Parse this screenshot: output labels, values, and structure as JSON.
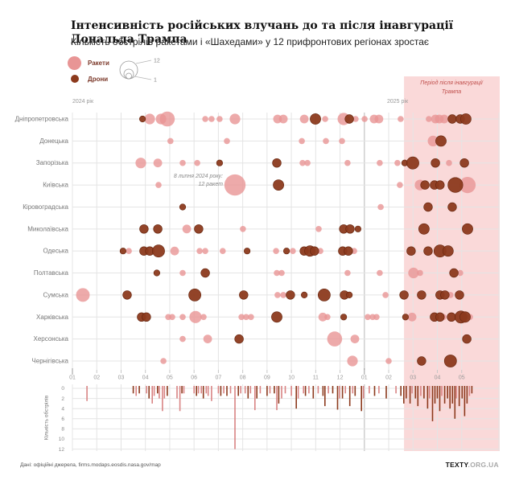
{
  "header": {
    "title": "Інтенсивність російських влучань до та після інавгурації Дональда Трампа",
    "subtitle": "Кількість обстрілів ракетами і «Шахедами» у 12 прифронтових регіонах зростає"
  },
  "legend": {
    "rockets": "Ракети",
    "drones": "Дрони",
    "size_max": "12",
    "size_min": "1"
  },
  "shade_label": {
    "line1": "Період після інавгурації",
    "line2": "Трампа"
  },
  "annotation": {
    "line1": "8 липня 2024 року:",
    "line2": "12 ракет"
  },
  "axis": {
    "year_left": "2024 рік",
    "year_right": "2025 рік",
    "bottom_label": "Кількість обстрілів"
  },
  "footer": {
    "source": "Дані: офіційні джерела, firms.modaps.eosdis.nasa.gov/map",
    "brand_bold": "TEXTY",
    "brand_rest": ".ORG.UA"
  },
  "colors": {
    "rocket": "#e89595",
    "drone": "#8c3a1d",
    "drone_stroke": "#66250e",
    "shade": "#fad9d9",
    "grid": "#e4e4e4",
    "year_line": "#c4c4c4",
    "axis_text": "#999999",
    "region_text": "#777777",
    "bar_rocket": "#d98484",
    "bar_drone": "#8c3a1d"
  },
  "chart_data": {
    "type": [
      "bubble-timeline",
      "bar"
    ],
    "title": "Інтенсивність російських влучань до та після інавгурації Дональда Трампа",
    "x_axis": "months from 2024-01 (t units, 0 = Jan 2024, 12 = Jan 2025)",
    "months": [
      "01",
      "02",
      "03",
      "04",
      "05",
      "06",
      "07",
      "08",
      "09",
      "10",
      "11",
      "12",
      "01",
      "02",
      "03",
      "04",
      "05"
    ],
    "x_domain": [
      0,
      17.53
    ],
    "shade_start_t": 13.63,
    "regions": [
      "Дніпропетровська",
      "Донецька",
      "Запорізька",
      "Київська",
      "Кіровоградська",
      "Миколаївська",
      "Одеська",
      "Полтавська",
      "Сумська",
      "Харківська",
      "Херсонська",
      "Чернігівська"
    ],
    "bubble_size_rule": "radius_px = 3.8 * sqrt(count); legend: count 1 (small) to 12 (large)",
    "annotation_target": {
      "region": "Київська",
      "t": 6.68,
      "count": 12
    },
    "bubbles": [
      [
        0,
        "d",
        2.88,
        1
      ],
      [
        0,
        "r",
        3.18,
        3
      ],
      [
        0,
        "r",
        3.64,
        3
      ],
      [
        0,
        "r",
        3.9,
        6
      ],
      [
        0,
        "r",
        5.46,
        1
      ],
      [
        0,
        "r",
        5.72,
        1
      ],
      [
        0,
        "r",
        6.05,
        1
      ],
      [
        0,
        "r",
        6.68,
        3
      ],
      [
        0,
        "r",
        8.43,
        2
      ],
      [
        0,
        "r",
        8.67,
        2
      ],
      [
        0,
        "r",
        9.53,
        2
      ],
      [
        0,
        "d",
        9.99,
        3
      ],
      [
        0,
        "r",
        10.39,
        1
      ],
      [
        0,
        "r",
        11.15,
        4
      ],
      [
        0,
        "d",
        11.38,
        2
      ],
      [
        0,
        "r",
        11.64,
        1
      ],
      [
        0,
        "r",
        12.01,
        1
      ],
      [
        0,
        "r",
        12.4,
        2
      ],
      [
        0,
        "r",
        12.6,
        2
      ],
      [
        0,
        "r",
        13.49,
        1
      ],
      [
        0,
        "r",
        14.65,
        1
      ],
      [
        0,
        "r",
        14.92,
        2
      ],
      [
        0,
        "r",
        15.08,
        2
      ],
      [
        0,
        "r",
        15.28,
        2
      ],
      [
        0,
        "d",
        15.61,
        2
      ],
      [
        0,
        "d",
        15.94,
        2
      ],
      [
        0,
        "d",
        16.17,
        3
      ],
      [
        1,
        "r",
        4.03,
        1
      ],
      [
        1,
        "r",
        6.35,
        1
      ],
      [
        1,
        "r",
        9.43,
        1
      ],
      [
        1,
        "r",
        10.42,
        1
      ],
      [
        1,
        "r",
        11.08,
        1
      ],
      [
        1,
        "r",
        14.82,
        3
      ],
      [
        1,
        "d",
        15.15,
        3
      ],
      [
        2,
        "r",
        2.81,
        3
      ],
      [
        2,
        "r",
        3.51,
        2
      ],
      [
        2,
        "r",
        4.53,
        1
      ],
      [
        2,
        "r",
        5.13,
        1
      ],
      [
        2,
        "d",
        6.05,
        1
      ],
      [
        2,
        "d",
        8.4,
        2
      ],
      [
        2,
        "r",
        9.46,
        1
      ],
      [
        2,
        "r",
        9.66,
        1
      ],
      [
        2,
        "r",
        11.31,
        1
      ],
      [
        2,
        "r",
        12.63,
        1
      ],
      [
        2,
        "r",
        13.36,
        1
      ],
      [
        2,
        "d",
        13.66,
        1
      ],
      [
        2,
        "d",
        13.99,
        4
      ],
      [
        2,
        "d",
        14.92,
        2
      ],
      [
        2,
        "r",
        15.48,
        1
      ],
      [
        2,
        "d",
        16.11,
        2
      ],
      [
        3,
        "r",
        3.54,
        1
      ],
      [
        3,
        "r",
        6.68,
        12
      ],
      [
        3,
        "d",
        8.47,
        3
      ],
      [
        3,
        "r",
        13.46,
        1
      ],
      [
        3,
        "r",
        14.29,
        3
      ],
      [
        3,
        "d",
        14.49,
        2
      ],
      [
        3,
        "d",
        14.88,
        2
      ],
      [
        3,
        "d",
        15.11,
        2
      ],
      [
        3,
        "d",
        15.74,
        6
      ],
      [
        3,
        "r",
        16.24,
        7
      ],
      [
        4,
        "d",
        4.53,
        1
      ],
      [
        4,
        "r",
        12.67,
        1
      ],
      [
        4,
        "d",
        14.62,
        2
      ],
      [
        4,
        "d",
        15.61,
        2
      ],
      [
        5,
        "d",
        2.94,
        2
      ],
      [
        5,
        "d",
        3.51,
        2
      ],
      [
        5,
        "r",
        4.7,
        2
      ],
      [
        5,
        "d",
        5.19,
        2
      ],
      [
        5,
        "r",
        7.01,
        1
      ],
      [
        5,
        "r",
        10.12,
        1
      ],
      [
        5,
        "d",
        11.15,
        2
      ],
      [
        5,
        "d",
        11.41,
        2
      ],
      [
        5,
        "d",
        11.74,
        1
      ],
      [
        5,
        "d",
        14.45,
        3
      ],
      [
        5,
        "d",
        16.24,
        3
      ],
      [
        6,
        "d",
        2.08,
        1
      ],
      [
        6,
        "r",
        2.32,
        1
      ],
      [
        6,
        "d",
        2.94,
        2
      ],
      [
        6,
        "d",
        3.18,
        2
      ],
      [
        6,
        "d",
        3.54,
        4
      ],
      [
        6,
        "r",
        4.2,
        2
      ],
      [
        6,
        "r",
        5.23,
        1
      ],
      [
        6,
        "r",
        5.46,
        1
      ],
      [
        6,
        "r",
        6.18,
        1
      ],
      [
        6,
        "d",
        7.18,
        1
      ],
      [
        6,
        "r",
        8.37,
        1
      ],
      [
        6,
        "d",
        8.8,
        1
      ],
      [
        6,
        "r",
        9.06,
        1
      ],
      [
        6,
        "d",
        9.53,
        2
      ],
      [
        6,
        "d",
        9.76,
        3
      ],
      [
        6,
        "d",
        9.95,
        2
      ],
      [
        6,
        "r",
        10.19,
        1
      ],
      [
        6,
        "d",
        11.11,
        2
      ],
      [
        6,
        "d",
        11.34,
        2
      ],
      [
        6,
        "r",
        11.58,
        1
      ],
      [
        6,
        "d",
        13.92,
        2
      ],
      [
        6,
        "d",
        14.62,
        2
      ],
      [
        6,
        "d",
        15.11,
        4
      ],
      [
        6,
        "d",
        15.44,
        3
      ],
      [
        7,
        "d",
        3.47,
        1
      ],
      [
        7,
        "r",
        4.53,
        1
      ],
      [
        7,
        "d",
        5.46,
        2
      ],
      [
        7,
        "r",
        8.4,
        1
      ],
      [
        7,
        "r",
        8.6,
        1
      ],
      [
        7,
        "r",
        11.31,
        1
      ],
      [
        7,
        "r",
        12.63,
        1
      ],
      [
        7,
        "r",
        14.02,
        3
      ],
      [
        7,
        "r",
        14.29,
        1
      ],
      [
        7,
        "d",
        15.68,
        2
      ],
      [
        7,
        "r",
        15.94,
        1
      ],
      [
        8,
        "r",
        0.43,
        5
      ],
      [
        8,
        "d",
        2.25,
        2
      ],
      [
        8,
        "d",
        5.03,
        4
      ],
      [
        8,
        "d",
        7.04,
        2
      ],
      [
        8,
        "r",
        8.43,
        1
      ],
      [
        8,
        "r",
        8.67,
        1
      ],
      [
        8,
        "d",
        8.96,
        2
      ],
      [
        8,
        "d",
        9.53,
        1
      ],
      [
        8,
        "d",
        10.35,
        4
      ],
      [
        8,
        "d",
        11.18,
        2
      ],
      [
        8,
        "d",
        11.38,
        1
      ],
      [
        8,
        "r",
        12.87,
        1
      ],
      [
        8,
        "d",
        13.63,
        2
      ],
      [
        8,
        "d",
        14.35,
        2
      ],
      [
        8,
        "d",
        15.11,
        2
      ],
      [
        8,
        "d",
        15.31,
        2
      ],
      [
        8,
        "r",
        15.54,
        1
      ],
      [
        8,
        "d",
        15.91,
        2
      ],
      [
        9,
        "d",
        2.84,
        2
      ],
      [
        9,
        "d",
        3.04,
        2
      ],
      [
        9,
        "r",
        3.94,
        1
      ],
      [
        9,
        "r",
        4.1,
        1
      ],
      [
        9,
        "r",
        4.53,
        1
      ],
      [
        9,
        "r",
        5.06,
        4
      ],
      [
        9,
        "r",
        5.39,
        1
      ],
      [
        9,
        "r",
        6.95,
        1
      ],
      [
        9,
        "r",
        7.14,
        1
      ],
      [
        9,
        "r",
        7.34,
        1
      ],
      [
        9,
        "d",
        8.4,
        3
      ],
      [
        9,
        "r",
        10.29,
        2
      ],
      [
        9,
        "r",
        10.48,
        1
      ],
      [
        9,
        "d",
        11.15,
        1
      ],
      [
        9,
        "r",
        12.14,
        1
      ],
      [
        9,
        "r",
        12.34,
        1
      ],
      [
        9,
        "r",
        12.5,
        1
      ],
      [
        9,
        "d",
        13.69,
        1
      ],
      [
        9,
        "r",
        13.96,
        2
      ],
      [
        9,
        "d",
        14.88,
        2
      ],
      [
        9,
        "d",
        15.11,
        2
      ],
      [
        9,
        "r",
        15.25,
        1
      ],
      [
        9,
        "d",
        15.58,
        2
      ],
      [
        9,
        "d",
        15.97,
        4
      ],
      [
        9,
        "d",
        16.14,
        3
      ],
      [
        9,
        "r",
        16.34,
        1
      ],
      [
        10,
        "r",
        4.53,
        1
      ],
      [
        10,
        "r",
        5.56,
        2
      ],
      [
        10,
        "d",
        6.85,
        2
      ],
      [
        10,
        "r",
        10.78,
        6
      ],
      [
        10,
        "r",
        11.61,
        2
      ],
      [
        10,
        "d",
        16.21,
        2
      ],
      [
        11,
        "r",
        3.74,
        1
      ],
      [
        11,
        "r",
        11.51,
        3
      ],
      [
        11,
        "r",
        13.0,
        1
      ],
      [
        11,
        "d",
        14.35,
        2
      ],
      [
        11,
        "d",
        15.54,
        4
      ]
    ],
    "bar_chart": {
      "ylabel": "Кількість обстрілів",
      "y_ticks": [
        0,
        2,
        4,
        6,
        8,
        10,
        12
      ],
      "y_inverted": true,
      "bars": [
        [
          0.6,
          2.5,
          "r"
        ],
        [
          2.5,
          1,
          "d"
        ],
        [
          2.62,
          1.5,
          "r"
        ],
        [
          2.75,
          1,
          "d"
        ],
        [
          3.05,
          1,
          "r"
        ],
        [
          3.15,
          2,
          "d"
        ],
        [
          3.28,
          3,
          "r"
        ],
        [
          3.36,
          1.5,
          "r"
        ],
        [
          3.5,
          1,
          "d"
        ],
        [
          3.57,
          2,
          "r"
        ],
        [
          3.7,
          4.5,
          "r"
        ],
        [
          3.78,
          2,
          "r"
        ],
        [
          3.9,
          1.5,
          "d"
        ],
        [
          4.3,
          2,
          "r"
        ],
        [
          4.42,
          4.5,
          "r"
        ],
        [
          4.5,
          1,
          "d"
        ],
        [
          4.58,
          1,
          "r"
        ],
        [
          5.0,
          1,
          "r"
        ],
        [
          5.1,
          1.5,
          "d"
        ],
        [
          5.18,
          1,
          "r"
        ],
        [
          5.3,
          1,
          "r"
        ],
        [
          5.38,
          2,
          "d"
        ],
        [
          5.5,
          1,
          "r"
        ],
        [
          5.58,
          1.5,
          "r"
        ],
        [
          5.72,
          2.5,
          "r"
        ],
        [
          6.0,
          1,
          "r"
        ],
        [
          6.1,
          1.5,
          "d"
        ],
        [
          6.22,
          1,
          "r"
        ],
        [
          6.35,
          1.5,
          "d"
        ],
        [
          6.5,
          1,
          "r"
        ],
        [
          6.68,
          12,
          "r"
        ],
        [
          6.82,
          1.5,
          "d"
        ],
        [
          6.92,
          1,
          "r"
        ],
        [
          7.1,
          1,
          "r"
        ],
        [
          7.22,
          2,
          "d"
        ],
        [
          7.32,
          1,
          "r"
        ],
        [
          7.5,
          4.3,
          "r"
        ],
        [
          7.58,
          2,
          "d"
        ],
        [
          7.72,
          1,
          "r"
        ],
        [
          8.0,
          1.5,
          "d"
        ],
        [
          8.12,
          1,
          "r"
        ],
        [
          8.3,
          1,
          "d"
        ],
        [
          8.4,
          4.3,
          "r"
        ],
        [
          8.48,
          3,
          "d"
        ],
        [
          8.6,
          2,
          "r"
        ],
        [
          8.75,
          1,
          "r"
        ],
        [
          9.0,
          1.5,
          "r"
        ],
        [
          9.2,
          4,
          "d"
        ],
        [
          9.28,
          2,
          "r"
        ],
        [
          9.5,
          1,
          "r"
        ],
        [
          9.58,
          1.5,
          "d"
        ],
        [
          9.72,
          1,
          "r"
        ],
        [
          9.9,
          2,
          "d"
        ],
        [
          10.1,
          1,
          "r"
        ],
        [
          10.3,
          1.5,
          "d"
        ],
        [
          10.38,
          3.5,
          "d"
        ],
        [
          10.52,
          1,
          "r"
        ],
        [
          10.7,
          1,
          "d"
        ],
        [
          10.9,
          4.2,
          "d"
        ],
        [
          10.98,
          2,
          "r"
        ],
        [
          11.1,
          2,
          "d"
        ],
        [
          11.22,
          1,
          "r"
        ],
        [
          11.4,
          3.5,
          "d"
        ],
        [
          11.52,
          1,
          "r"
        ],
        [
          11.62,
          1.5,
          "d"
        ],
        [
          11.88,
          4.5,
          "d"
        ],
        [
          11.96,
          2,
          "r"
        ],
        [
          12.2,
          1,
          "r"
        ],
        [
          12.42,
          1.5,
          "d"
        ],
        [
          12.6,
          1,
          "r"
        ],
        [
          12.9,
          2,
          "d"
        ],
        [
          13.3,
          1,
          "r"
        ],
        [
          13.5,
          1.5,
          "d"
        ],
        [
          13.62,
          3,
          "d"
        ],
        [
          13.72,
          2,
          "d"
        ],
        [
          13.88,
          3,
          "d"
        ],
        [
          13.96,
          1,
          "r"
        ],
        [
          14.1,
          2,
          "d"
        ],
        [
          14.2,
          3.5,
          "d"
        ],
        [
          14.32,
          1.5,
          "r"
        ],
        [
          14.45,
          2,
          "d"
        ],
        [
          14.6,
          4,
          "d"
        ],
        [
          14.68,
          2,
          "r"
        ],
        [
          14.8,
          6.5,
          "d"
        ],
        [
          14.9,
          3,
          "d"
        ],
        [
          15.0,
          2,
          "d"
        ],
        [
          15.1,
          4.5,
          "d"
        ],
        [
          15.18,
          1.5,
          "r"
        ],
        [
          15.3,
          3,
          "d"
        ],
        [
          15.42,
          2,
          "d"
        ],
        [
          15.52,
          4,
          "d"
        ],
        [
          15.62,
          3,
          "d"
        ],
        [
          15.72,
          6,
          "d"
        ],
        [
          15.78,
          2,
          "r"
        ],
        [
          15.9,
          3.5,
          "d"
        ],
        [
          16.02,
          2,
          "d"
        ],
        [
          16.12,
          5.5,
          "d"
        ],
        [
          16.22,
          3,
          "d"
        ],
        [
          16.32,
          1.5,
          "r"
        ],
        [
          16.42,
          1,
          "d"
        ]
      ]
    }
  }
}
